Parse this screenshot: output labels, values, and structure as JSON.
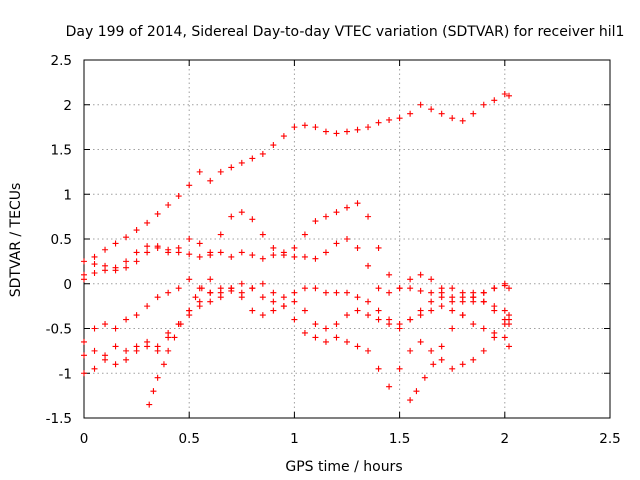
{
  "chart_data": {
    "type": "scatter",
    "title": "Day 199 of 2014, Sidereal Day-to-day VTEC variation (SDTVAR) for receiver hil1",
    "xlabel": "GPS time / hours",
    "ylabel": "SDTVAR / TECUs",
    "xlim": [
      0,
      2.5
    ],
    "ylim": [
      -1.5,
      2.5
    ],
    "xticks": [
      "0",
      "0.5",
      "1",
      "1.5",
      "2",
      "2.5"
    ],
    "yticks": [
      "-1.5",
      "-1",
      "-0.5",
      "0",
      "0.5",
      "1",
      "1.5",
      "2",
      "2.5"
    ],
    "grid": true,
    "marker": "+",
    "color": "#ff0000",
    "series": [
      {
        "x": [
          0,
          0.05,
          0.1,
          0.15,
          0.2,
          0.25,
          0.3,
          0.35,
          0.4,
          0.45,
          0.5,
          0.55,
          0.6,
          0.65,
          0.7,
          0.75,
          0.8,
          0.85,
          0.9,
          0.95,
          1.0,
          1.05,
          1.1,
          1.15,
          1.2,
          1.25,
          1.3,
          1.35,
          1.4,
          1.45,
          1.5,
          1.55,
          1.6,
          1.65,
          1.7,
          1.75,
          1.8,
          1.85,
          1.9,
          1.95,
          2.0,
          2.02
        ],
        "y": [
          0.25,
          0.3,
          0.38,
          0.45,
          0.52,
          0.6,
          0.68,
          0.78,
          0.88,
          0.98,
          1.1,
          1.25,
          1.15,
          1.25,
          1.3,
          1.35,
          1.4,
          1.45,
          1.55,
          1.65,
          1.75,
          1.77,
          1.75,
          1.7,
          1.68,
          1.7,
          1.72,
          1.75,
          1.8,
          1.83,
          1.85,
          1.9,
          2.0,
          1.95,
          1.9,
          1.85,
          1.82,
          1.9,
          2.0,
          2.05,
          2.12,
          2.1
        ]
      },
      {
        "x": [
          0,
          0.05,
          0.1,
          0.15,
          0.2,
          0.25,
          0.3,
          0.35,
          0.4,
          0.45,
          0.5,
          0.55,
          0.6,
          0.65,
          0.7,
          0.75,
          0.8,
          0.85,
          0.9,
          0.95,
          1.0,
          1.05,
          1.1,
          1.15,
          1.2,
          1.25,
          1.3,
          1.35,
          1.4,
          1.45,
          1.5,
          1.55,
          1.6,
          1.65,
          1.7,
          1.75,
          1.8,
          1.85,
          1.9,
          1.95,
          2.0,
          2.02
        ],
        "y": [
          0.1,
          0.22,
          0.15,
          0.18,
          0.25,
          0.35,
          0.42,
          0.4,
          0.35,
          0.4,
          0.5,
          0.45,
          0.32,
          0.35,
          0.3,
          0.35,
          0.32,
          0.28,
          0.32,
          0.35,
          0.4,
          0.55,
          0.7,
          0.75,
          0.8,
          0.85,
          0.9,
          0.75,
          0.4,
          0.1,
          -0.05,
          -0.05,
          -0.08,
          -0.1,
          -0.15,
          -0.2,
          -0.15,
          -0.1,
          -0.2,
          -0.3,
          -0.4,
          -0.45
        ]
      },
      {
        "x": [
          0,
          0.05,
          0.1,
          0.15,
          0.2,
          0.25,
          0.3,
          0.35,
          0.4,
          0.45,
          0.5,
          0.55,
          0.6,
          0.65,
          0.7,
          0.75,
          0.8,
          0.85,
          0.9,
          0.95,
          1.0,
          1.05,
          1.1,
          1.15,
          1.2,
          1.25,
          1.3,
          1.35,
          1.4,
          1.45,
          1.5,
          1.55,
          1.6,
          1.65,
          1.7,
          1.75,
          1.8,
          1.85,
          1.9,
          1.95,
          2.0,
          2.02
        ],
        "y": [
          0.05,
          0.12,
          0.2,
          0.15,
          0.18,
          0.25,
          0.35,
          0.42,
          0.38,
          0.35,
          0.33,
          0.3,
          0.35,
          0.55,
          0.75,
          0.8,
          0.72,
          0.55,
          0.4,
          0.32,
          0.3,
          0.3,
          0.28,
          0.35,
          0.45,
          0.5,
          0.4,
          0.2,
          -0.05,
          -0.1,
          -0.05,
          0.05,
          0.1,
          0.05,
          -0.05,
          -0.15,
          -0.2,
          -0.15,
          -0.1,
          -0.05,
          -0.02,
          -0.05
        ]
      },
      {
        "x": [
          0,
          0.05,
          0.1,
          0.15,
          0.2,
          0.25,
          0.3,
          0.35,
          0.4,
          0.45,
          0.5,
          0.55,
          0.6,
          0.65,
          0.7,
          0.75,
          0.8,
          0.85,
          0.9,
          0.95,
          1.0,
          1.05,
          1.1,
          1.15,
          1.2,
          1.25,
          1.3,
          1.35,
          1.4,
          1.45,
          1.5,
          1.55,
          1.6,
          1.65,
          1.7,
          1.75,
          1.8,
          1.85,
          1.9,
          1.95,
          2.0,
          2.02
        ],
        "y": [
          -0.65,
          -0.5,
          -0.45,
          -0.5,
          -0.4,
          -0.35,
          -0.25,
          -0.15,
          -0.1,
          -0.05,
          0.05,
          -0.05,
          -0.1,
          -0.15,
          -0.05,
          0.0,
          -0.05,
          -0.15,
          -0.2,
          -0.15,
          -0.1,
          -0.05,
          -0.05,
          -0.1,
          -0.1,
          -0.1,
          -0.15,
          -0.2,
          -0.3,
          -0.4,
          -0.45,
          -0.4,
          -0.3,
          -0.2,
          -0.1,
          -0.05,
          -0.1,
          -0.15,
          -0.2,
          -0.25,
          -0.3,
          -0.35
        ]
      },
      {
        "x": [
          0,
          0.05,
          0.1,
          0.15,
          0.2,
          0.25,
          0.3,
          0.35,
          0.4,
          0.45,
          0.5,
          0.55,
          0.6,
          0.65,
          0.7,
          0.75,
          0.8,
          0.85,
          0.9,
          0.95,
          1.0,
          1.05,
          1.1,
          1.15,
          1.2,
          1.25,
          1.3,
          1.35,
          1.4,
          1.45,
          1.5,
          1.55,
          1.6,
          1.65,
          1.7,
          1.75,
          1.8,
          1.85,
          1.9,
          1.95,
          2.0,
          2.02
        ],
        "y": [
          -0.8,
          -0.75,
          -0.8,
          -0.7,
          -0.75,
          -0.7,
          -0.65,
          -0.7,
          -0.55,
          -0.45,
          -0.35,
          -0.25,
          -0.2,
          -0.1,
          -0.05,
          -0.15,
          -0.3,
          -0.35,
          -0.3,
          -0.25,
          -0.2,
          -0.3,
          -0.45,
          -0.5,
          -0.45,
          -0.35,
          -0.3,
          -0.35,
          -0.4,
          -0.45,
          -0.5,
          -0.4,
          -0.35,
          -0.3,
          -0.25,
          -0.3,
          -0.35,
          -0.45,
          -0.5,
          -0.55,
          -0.6,
          -0.7
        ]
      },
      {
        "x": [
          0,
          0.05,
          0.1,
          0.15,
          0.2,
          0.25,
          0.3,
          0.35,
          0.4,
          0.45,
          0.5,
          0.55,
          0.6,
          0.65,
          0.7,
          0.75,
          0.8,
          0.85,
          0.9,
          0.95,
          1.0,
          1.05,
          1.1,
          1.15,
          1.2,
          1.25,
          1.3,
          1.35,
          1.4,
          1.45,
          1.5,
          1.55,
          1.6,
          1.65,
          1.7,
          1.75,
          1.8,
          1.85,
          1.9,
          1.95,
          2.0,
          2.02
        ],
        "y": [
          -1.0,
          -0.95,
          -0.85,
          -0.9,
          -0.85,
          -0.75,
          -0.7,
          -0.75,
          -0.6,
          -0.45,
          -0.3,
          -0.2,
          -0.1,
          -0.05,
          -0.08,
          -0.1,
          -0.05,
          0.0,
          -0.1,
          -0.25,
          -0.4,
          -0.55,
          -0.6,
          -0.65,
          -0.6,
          -0.65,
          -0.7,
          -0.75,
          -0.95,
          -1.15,
          -0.95,
          -0.75,
          -0.65,
          -0.75,
          -0.85,
          -0.95,
          -0.9,
          -0.85,
          -0.75,
          -0.6,
          -0.45,
          -0.4
        ]
      },
      {
        "x": [
          0.31,
          0.33,
          0.35,
          0.38,
          0.4,
          0.43,
          0.46,
          0.5,
          0.53,
          0.56,
          0.6
        ],
        "y": [
          -1.35,
          -1.2,
          -1.05,
          -0.9,
          -0.75,
          -0.6,
          -0.45,
          -0.3,
          -0.15,
          -0.05,
          0.05
        ]
      },
      {
        "x": [
          1.55,
          1.58,
          1.62,
          1.66,
          1.7,
          1.75,
          1.8,
          1.85,
          1.9,
          1.95,
          2.0
        ],
        "y": [
          -1.3,
          -1.2,
          -1.05,
          -0.9,
          -0.7,
          -0.5,
          -0.35,
          -0.2,
          -0.1,
          -0.05,
          0.0
        ]
      }
    ]
  }
}
